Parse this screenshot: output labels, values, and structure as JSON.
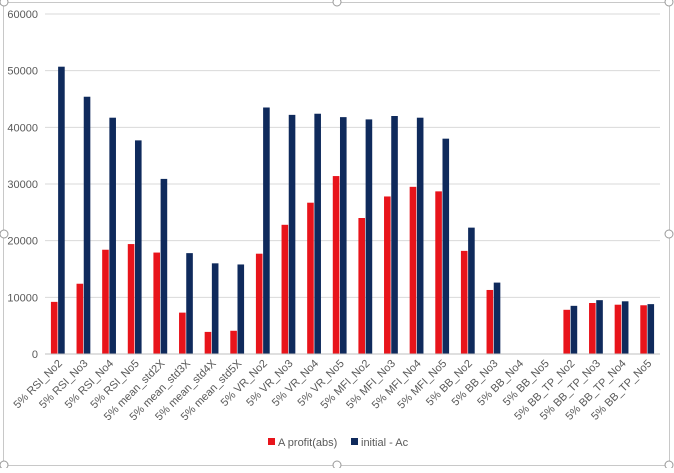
{
  "chart_data": {
    "type": "bar",
    "title": "",
    "xlabel": "",
    "ylabel": "",
    "ylim": [
      0,
      60000
    ],
    "yticks": [
      0,
      10000,
      20000,
      30000,
      40000,
      50000,
      60000
    ],
    "ytick_labels": [
      "0",
      "10000",
      "20000",
      "30000",
      "40000",
      "50000",
      "60000"
    ],
    "grid": true,
    "legend_position": "bottom",
    "categories": [
      "5% RSI_No2",
      "5% RSI_No3",
      "5% RSI_No4",
      "5% RSI_No5",
      "5% mean_std2X",
      "5% mean_std3X",
      "5% mean_std4X",
      "5% mean_std5X",
      "5% VR_No2",
      "5% VR_No3",
      "5% VR_No4",
      "5% VR_No5",
      "5% MFI_No2",
      "5% MFI_No3",
      "5% MFI_No4",
      "5% MFI_No5",
      "5% BB_No2",
      "5% BB_No3",
      "5% BB_No4",
      "5% BB_No5",
      "5% BB_TP_No2",
      "5% BB_TP_No3",
      "5% BB_TP_No4",
      "5% BB_TP_No5"
    ],
    "series": [
      {
        "name": "A profit(abs)",
        "color": "#e8141b",
        "values": [
          9200,
          12400,
          18400,
          19400,
          17900,
          7300,
          3900,
          4100,
          17700,
          22800,
          26700,
          31400,
          24000,
          27800,
          29500,
          28700,
          18200,
          11300,
          0,
          0,
          7800,
          9000,
          8700,
          8600
        ]
      },
      {
        "name": "initial - Ac",
        "color": "#0f2a5c",
        "values": [
          50700,
          45400,
          41700,
          37700,
          30900,
          17800,
          16000,
          15800,
          43500,
          42200,
          42400,
          41800,
          41400,
          42000,
          41700,
          38000,
          22300,
          12600,
          0,
          0,
          8500,
          9500,
          9300,
          8800
        ]
      }
    ]
  }
}
